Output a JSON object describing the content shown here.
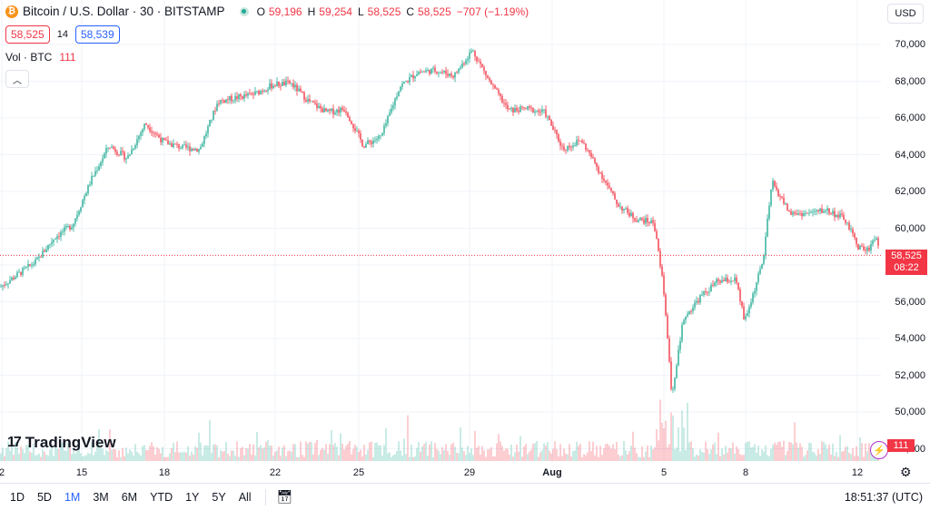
{
  "symbol": {
    "icon": "bitcoin-icon",
    "title": "Bitcoin / U.S. Dollar · 30 · BITSTAMP",
    "status_color": "#22ab94"
  },
  "ohlc": {
    "o_label": "O",
    "o_value": "59,196",
    "h_label": "H",
    "h_value": "59,254",
    "l_label": "L",
    "l_value": "58,525",
    "c_label": "C",
    "c_value": "58,525",
    "change": "−707 (−1.19%)"
  },
  "quote": {
    "bid": "58,525",
    "spread": "14",
    "ask": "58,539"
  },
  "volume": {
    "label": "Vol · BTC",
    "value": "111"
  },
  "currency": "USD",
  "price_axis": {
    "labels": [
      "70,000",
      "68,000",
      "66,000",
      "64,000",
      "62,000",
      "60,000",
      "58,000",
      "56,000",
      "54,000",
      "52,000",
      "50,000",
      "48,000"
    ],
    "last_price": "58,525",
    "countdown": "08:22",
    "volume_tag": "111"
  },
  "time_axis": {
    "labels": [
      "2",
      "15",
      "18",
      "22",
      "25",
      "29",
      "Aug",
      "5",
      "8",
      "12"
    ]
  },
  "bottom_bar": {
    "ranges": [
      "1D",
      "5D",
      "1M",
      "3M",
      "6M",
      "YTD",
      "1Y",
      "5Y",
      "All"
    ],
    "active_range": "1M",
    "clock": "18:51:37 (UTC)"
  },
  "brand": {
    "name": "TradingView"
  },
  "colors": {
    "up": "#22ab94",
    "down": "#f23645",
    "accent": "#2962ff",
    "bitcoin": "#f7931a"
  },
  "chart_data": {
    "type": "candlestick",
    "ylim": [
      48000,
      71200
    ],
    "close_path": [
      [
        0,
        56800
      ],
      [
        20,
        57500
      ],
      [
        40,
        58200
      ],
      [
        60,
        59500
      ],
      [
        80,
        60200
      ],
      [
        100,
        62600
      ],
      [
        120,
        64500
      ],
      [
        140,
        63800
      ],
      [
        160,
        65700
      ],
      [
        180,
        64700
      ],
      [
        200,
        64400
      ],
      [
        220,
        64300
      ],
      [
        240,
        66900
      ],
      [
        260,
        67100
      ],
      [
        280,
        67300
      ],
      [
        300,
        67800
      ],
      [
        320,
        67900
      ],
      [
        340,
        66900
      ],
      [
        360,
        66300
      ],
      [
        380,
        66500
      ],
      [
        400,
        64500
      ],
      [
        420,
        65000
      ],
      [
        440,
        67700
      ],
      [
        460,
        68500
      ],
      [
        480,
        68600
      ],
      [
        500,
        68300
      ],
      [
        520,
        69700
      ],
      [
        540,
        67900
      ],
      [
        560,
        66400
      ],
      [
        580,
        66500
      ],
      [
        600,
        66300
      ],
      [
        620,
        64300
      ],
      [
        640,
        64800
      ],
      [
        660,
        63100
      ],
      [
        680,
        61300
      ],
      [
        700,
        60500
      ],
      [
        720,
        60300
      ],
      [
        730,
        57000
      ],
      [
        740,
        50800
      ],
      [
        752,
        55000
      ],
      [
        770,
        56200
      ],
      [
        790,
        57100
      ],
      [
        810,
        57200
      ],
      [
        820,
        54900
      ],
      [
        840,
        58200
      ],
      [
        850,
        62500
      ],
      [
        870,
        60800
      ],
      [
        890,
        60800
      ],
      [
        910,
        61000
      ],
      [
        930,
        60500
      ],
      [
        945,
        59000
      ],
      [
        955,
        58800
      ],
      [
        965,
        59600
      ],
      [
        968,
        58525
      ]
    ],
    "volume_note": "per-bar volume histogram along bottom, spikes near Aug 5"
  }
}
